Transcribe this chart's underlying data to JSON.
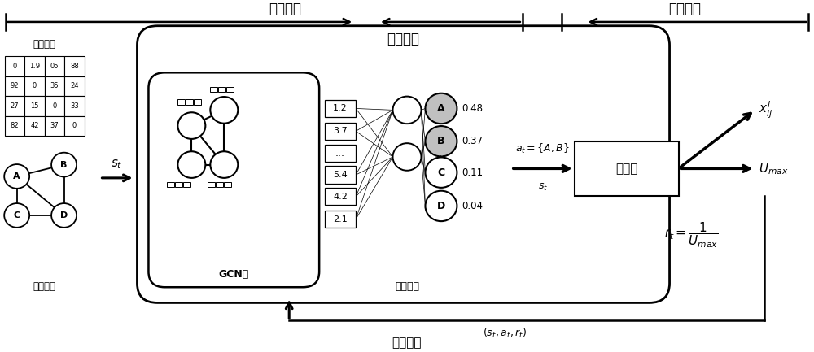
{
  "bg_color": "#ffffff",
  "top_label_left": "节点选择",
  "top_label_right": "线性规划",
  "policy_network_label": "策略网络",
  "gcn_label": "GCN层",
  "fc_label": "全连接层",
  "traffic_matrix_label": "流量矩阵",
  "network_topo_label": "网络拓扑",
  "model_train_label": "模型训练",
  "matrix_data": [
    [
      "0",
      "1.9",
      "05",
      "88"
    ],
    [
      "92",
      "0",
      "35",
      "24"
    ],
    [
      "27",
      "15",
      "0",
      "33"
    ],
    [
      "82",
      "42",
      "37",
      "0"
    ]
  ],
  "fc_values": [
    "1.2",
    "3.7",
    "...",
    "5.4",
    "4.2",
    "2.1"
  ],
  "output_nodes": [
    {
      "label": "A",
      "prob": "0.48",
      "gray": true
    },
    {
      "label": "B",
      "prob": "0.37",
      "gray": true
    },
    {
      "label": "C",
      "prob": "0.11",
      "gray": false
    },
    {
      "label": "D",
      "prob": "0.04",
      "gray": false
    }
  ],
  "solver_label": "求解器",
  "feedback_label": "$(s_t, a_t, r_t)$"
}
